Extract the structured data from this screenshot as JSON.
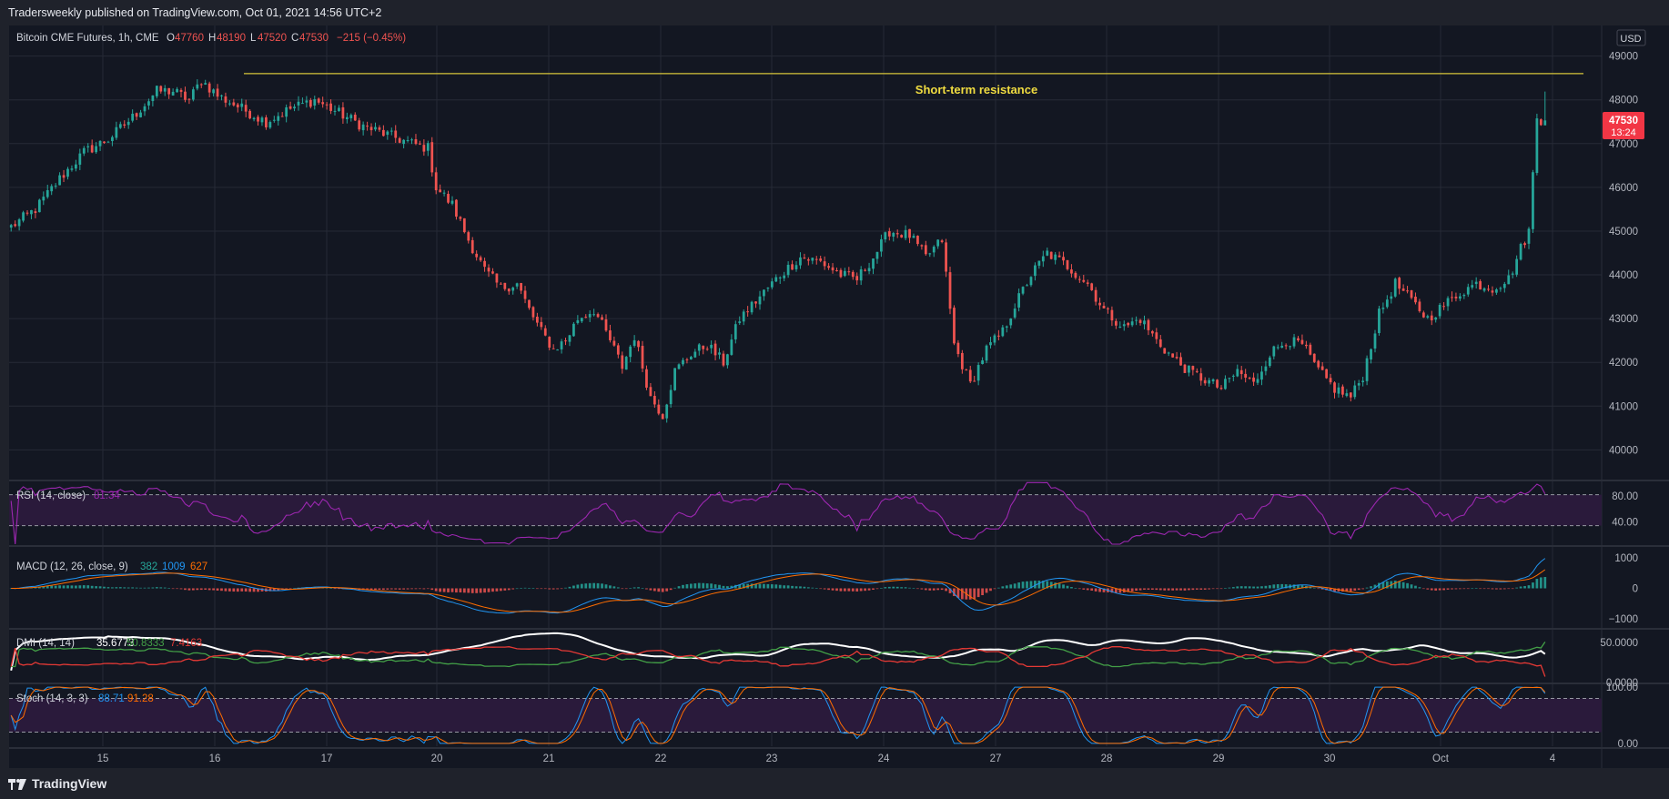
{
  "header": {
    "publisher_line": "Tradersweekly published on TradingView.com, Oct 01, 2021 14:56 UTC+2"
  },
  "footer": {
    "brand": "TradingView"
  },
  "colors": {
    "bg": "#131722",
    "panel": "#1f222b",
    "up": "#26a69a",
    "down": "#ef5350",
    "grid": "#262a36",
    "resistance": "#d8c53a",
    "rsi": "#9c27b0",
    "macd": "#2196f3",
    "signal": "#ff6d00",
    "dmi_adx": "#ffffff",
    "dmi_plus": "#43a047",
    "dmi_minus": "#e53935",
    "stoch_k": "#2196f3",
    "stoch_d": "#ff6d00"
  },
  "main": {
    "symbol": "Bitcoin CME Futures, 1h, CME",
    "o_label": "O",
    "o_value": "47760",
    "h_label": "H",
    "h_value": "48190",
    "l_label": "L",
    "l_value": "47520",
    "c_label": "C",
    "c_value": "47530",
    "change": "−215 (−0.45%)",
    "currency": "USD",
    "price_tag": "47530",
    "countdown": "13:24",
    "annotation": "Short-term resistance"
  },
  "price_axis": [
    "49000",
    "48000",
    "47000",
    "46000",
    "45000",
    "44000",
    "43000",
    "42000",
    "41000",
    "40000"
  ],
  "time_axis": [
    "15",
    "16",
    "17",
    "20",
    "21",
    "22",
    "23",
    "24",
    "27",
    "28",
    "29",
    "30",
    "Oct",
    "4"
  ],
  "rsi": {
    "label": "RSI (14, close)",
    "value": "81.34",
    "ticks": [
      "80.00",
      "40.00"
    ]
  },
  "macd": {
    "label": "MACD (12, 26, close, 9)",
    "v1": "382",
    "v2": "1009",
    "v3": "627",
    "ticks": [
      "1000",
      "0",
      "−1000"
    ]
  },
  "dmi": {
    "label": "DMI (14, 14)",
    "v1": "35.6773",
    "v2": "50.8333",
    "v3": "7.4163",
    "ticks": [
      "50.0000",
      "0.0000"
    ]
  },
  "stoch": {
    "label": "Stoch (14, 3, 3)",
    "v1": "88.71",
    "v2": "91.28",
    "ticks": [
      "100.00",
      "0.00"
    ]
  },
  "chart_data": {
    "type": "candlestick",
    "title": "Bitcoin CME Futures, 1h, CME",
    "ylim": [
      39300,
      49700
    ],
    "x_ticks": [
      "15",
      "16",
      "17",
      "20",
      "21",
      "22",
      "23",
      "24",
      "27",
      "28",
      "29",
      "30",
      "Oct",
      "4"
    ],
    "resistance_level": 48600,
    "path_anchors": [
      [
        0,
        45100
      ],
      [
        6,
        45500
      ],
      [
        12,
        46200
      ],
      [
        18,
        46800
      ],
      [
        24,
        47100
      ],
      [
        30,
        47600
      ],
      [
        36,
        48200
      ],
      [
        40,
        48200
      ],
      [
        44,
        48000
      ],
      [
        47,
        48450
      ],
      [
        51,
        48100
      ],
      [
        57,
        47800
      ],
      [
        63,
        47500
      ],
      [
        69,
        47800
      ],
      [
        75,
        48000
      ],
      [
        81,
        47700
      ],
      [
        87,
        47400
      ],
      [
        93,
        47200
      ],
      [
        99,
        47000
      ],
      [
        103,
        46900
      ],
      [
        105,
        46000
      ],
      [
        109,
        45600
      ],
      [
        113,
        44800
      ],
      [
        117,
        44100
      ],
      [
        121,
        43700
      ],
      [
        125,
        43800
      ],
      [
        128,
        43200
      ],
      [
        131,
        42700
      ],
      [
        134,
        42300
      ],
      [
        137,
        42500
      ],
      [
        140,
        43000
      ],
      [
        144,
        43200
      ],
      [
        148,
        42500
      ],
      [
        151,
        41900
      ],
      [
        154,
        42600
      ],
      [
        158,
        41200
      ],
      [
        161,
        40800
      ],
      [
        164,
        41800
      ],
      [
        168,
        42200
      ],
      [
        172,
        42400
      ],
      [
        176,
        42000
      ],
      [
        180,
        43000
      ],
      [
        185,
        43500
      ],
      [
        190,
        44000
      ],
      [
        195,
        44400
      ],
      [
        200,
        44300
      ],
      [
        205,
        44000
      ],
      [
        209,
        43900
      ],
      [
        213,
        44400
      ],
      [
        217,
        45000
      ],
      [
        222,
        44900
      ],
      [
        226,
        44400
      ],
      [
        230,
        44800
      ],
      [
        233,
        42400
      ],
      [
        237,
        41500
      ],
      [
        241,
        42300
      ],
      [
        245,
        42700
      ],
      [
        248,
        43300
      ],
      [
        252,
        44000
      ],
      [
        256,
        44500
      ],
      [
        261,
        44200
      ],
      [
        266,
        43800
      ],
      [
        270,
        43200
      ],
      [
        275,
        42800
      ],
      [
        279,
        43000
      ],
      [
        283,
        42500
      ],
      [
        287,
        42100
      ],
      [
        291,
        41800
      ],
      [
        295,
        41600
      ],
      [
        299,
        41400
      ],
      [
        303,
        41800
      ],
      [
        307,
        41500
      ],
      [
        311,
        42200
      ],
      [
        315,
        42500
      ],
      [
        319,
        42400
      ],
      [
        323,
        41800
      ],
      [
        327,
        41400
      ],
      [
        331,
        41200
      ],
      [
        334,
        41700
      ],
      [
        338,
        43100
      ],
      [
        342,
        43800
      ],
      [
        346,
        43400
      ],
      [
        350,
        43000
      ],
      [
        354,
        43300
      ],
      [
        358,
        43600
      ],
      [
        362,
        43800
      ],
      [
        366,
        43700
      ],
      [
        370,
        43900
      ],
      [
        373,
        44600
      ],
      [
        375,
        45000
      ],
      [
        377,
        47600
      ],
      [
        379,
        47500
      ]
    ],
    "last_ohlc": {
      "open": 47760,
      "high": 48190,
      "low": 47520,
      "close": 47530,
      "change": -215,
      "change_pct": -0.45
    }
  }
}
